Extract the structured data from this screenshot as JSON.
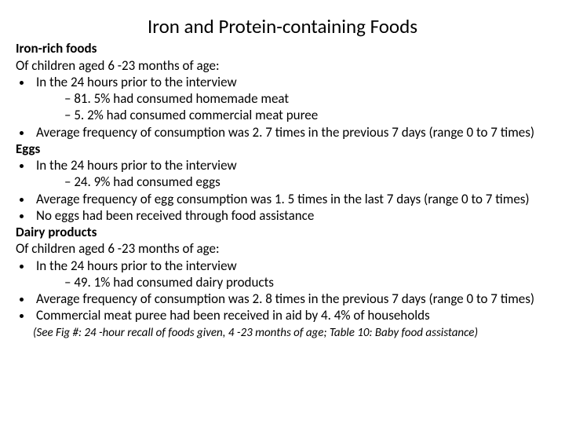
{
  "title": "Iron and Protein-containing Foods",
  "sections": {
    "iron": {
      "header": "Iron-rich foods",
      "sub": "Of children aged 6 -23 months of age:",
      "b1": "In the 24 hours prior to the interview",
      "d1": "81. 5% had consumed homemade meat",
      "d2": "5. 2% had consumed commercial meat puree",
      "b2": "Average frequency of consumption was 2. 7 times in the previous 7 days (range 0 to 7 times)"
    },
    "eggs": {
      "header": "Eggs",
      "b1": "In the 24 hours prior to the interview",
      "d1": "24. 9% had consumed eggs",
      "b2": "Average frequency of egg consumption was 1. 5 times in the last 7 days (range 0 to 7 times)",
      "b3": "No eggs had been received through food assistance"
    },
    "dairy": {
      "header": "Dairy products",
      "sub": "Of children aged 6 -23 months of age:",
      "b1": "In the 24 hours prior to the interview",
      "d1": "49. 1% had consumed dairy products",
      "b2": "Average frequency of consumption was 2. 8 times in the previous 7 days (range 0 to 7 times)",
      "b3": "Commercial meat puree had been received in aid by 4. 4% of households"
    }
  },
  "footnote": "(See Fig #: 24 -hour recall of foods given, 4 -23 months of age; Table 10: Baby food assistance)"
}
